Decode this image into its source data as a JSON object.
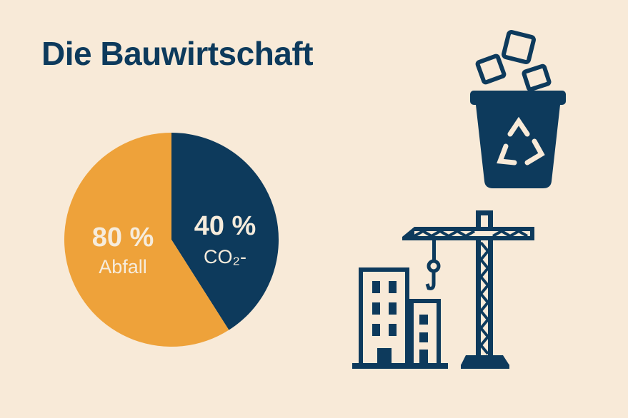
{
  "title": "Die Bauwirtschaft",
  "colors": {
    "background": "#f8ead8",
    "navy": "#0d3a5c",
    "orange": "#eea23a",
    "label_text": "#f6ecdc"
  },
  "icons": [
    "recycling-bin-icon",
    "construction-crane-icon",
    "buildings-icon"
  ],
  "chart_data": {
    "type": "pie",
    "title": "",
    "start": "top",
    "direction": "clockwise",
    "slices": [
      {
        "percent_label": "40 %",
        "caption": "CO₂-",
        "value": 41,
        "color": "#0d3a5c"
      },
      {
        "percent_label": "80 %",
        "caption": "Abfall",
        "value": 59,
        "color": "#eea23a"
      }
    ]
  }
}
